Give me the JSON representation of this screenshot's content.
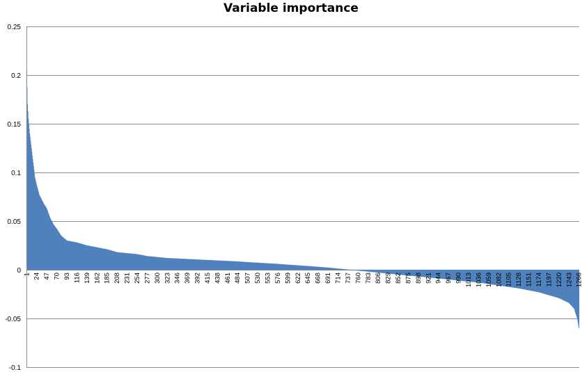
{
  "chart_data": {
    "type": "bar",
    "title": "Variable importance",
    "xlabel": "",
    "ylabel": "",
    "n_bars": 1266,
    "ylim": [
      -0.1,
      0.25
    ],
    "yticks": [
      -0.1,
      -0.05,
      0,
      0.05,
      0.1,
      0.15,
      0.2,
      0.25
    ],
    "ytick_labels": [
      "-0.1",
      "-0.05",
      "0",
      "0.05",
      "0.1",
      "0.15",
      "0.2",
      "0.25"
    ],
    "xtick_labels": [
      "1",
      "24",
      "47",
      "70",
      "93",
      "116",
      "139",
      "162",
      "185",
      "208",
      "231",
      "254",
      "277",
      "300",
      "323",
      "346",
      "369",
      "392",
      "415",
      "438",
      "461",
      "484",
      "507",
      "530",
      "553",
      "576",
      "599",
      "622",
      "645",
      "668",
      "691",
      "714",
      "737",
      "760",
      "783",
      "806",
      "829",
      "852",
      "875",
      "898",
      "921",
      "944",
      "967",
      "990",
      "1013",
      "1036",
      "1059",
      "1082",
      "1105",
      "1128",
      "1151",
      "1174",
      "1197",
      "1220",
      "1243",
      "1266"
    ],
    "grid": true,
    "legend": "none",
    "bar_color": "#4f81bd",
    "value_profile": [
      [
        1,
        0.205
      ],
      [
        3,
        0.17
      ],
      [
        5,
        0.155
      ],
      [
        8,
        0.14
      ],
      [
        12,
        0.125
      ],
      [
        16,
        0.11
      ],
      [
        20,
        0.095
      ],
      [
        24,
        0.087
      ],
      [
        30,
        0.077
      ],
      [
        40,
        0.068
      ],
      [
        47,
        0.063
      ],
      [
        55,
        0.053
      ],
      [
        62,
        0.047
      ],
      [
        70,
        0.042
      ],
      [
        80,
        0.035
      ],
      [
        93,
        0.03
      ],
      [
        116,
        0.028
      ],
      [
        139,
        0.025
      ],
      [
        162,
        0.023
      ],
      [
        185,
        0.021
      ],
      [
        208,
        0.018
      ],
      [
        231,
        0.017
      ],
      [
        254,
        0.016
      ],
      [
        277,
        0.014
      ],
      [
        300,
        0.013
      ],
      [
        323,
        0.012
      ],
      [
        346,
        0.0115
      ],
      [
        369,
        0.011
      ],
      [
        392,
        0.0105
      ],
      [
        415,
        0.01
      ],
      [
        438,
        0.0095
      ],
      [
        461,
        0.009
      ],
      [
        484,
        0.0085
      ],
      [
        507,
        0.0078
      ],
      [
        530,
        0.0072
      ],
      [
        553,
        0.0066
      ],
      [
        576,
        0.006
      ],
      [
        599,
        0.0052
      ],
      [
        622,
        0.0045
      ],
      [
        645,
        0.0038
      ],
      [
        668,
        0.003
      ],
      [
        691,
        0.0022
      ],
      [
        714,
        0.0012
      ],
      [
        737,
        0.0002
      ],
      [
        760,
        -0.0008
      ],
      [
        783,
        -0.0018
      ],
      [
        806,
        -0.0028
      ],
      [
        829,
        -0.0038
      ],
      [
        852,
        -0.0048
      ],
      [
        875,
        -0.0058
      ],
      [
        898,
        -0.0068
      ],
      [
        921,
        -0.0078
      ],
      [
        944,
        -0.0088
      ],
      [
        967,
        -0.0098
      ],
      [
        990,
        -0.011
      ],
      [
        1013,
        -0.012
      ],
      [
        1036,
        -0.013
      ],
      [
        1059,
        -0.0145
      ],
      [
        1082,
        -0.016
      ],
      [
        1105,
        -0.0175
      ],
      [
        1128,
        -0.019
      ],
      [
        1151,
        -0.021
      ],
      [
        1174,
        -0.023
      ],
      [
        1197,
        -0.026
      ],
      [
        1220,
        -0.029
      ],
      [
        1243,
        -0.034
      ],
      [
        1255,
        -0.04
      ],
      [
        1262,
        -0.05
      ],
      [
        1266,
        -0.06
      ]
    ]
  }
}
